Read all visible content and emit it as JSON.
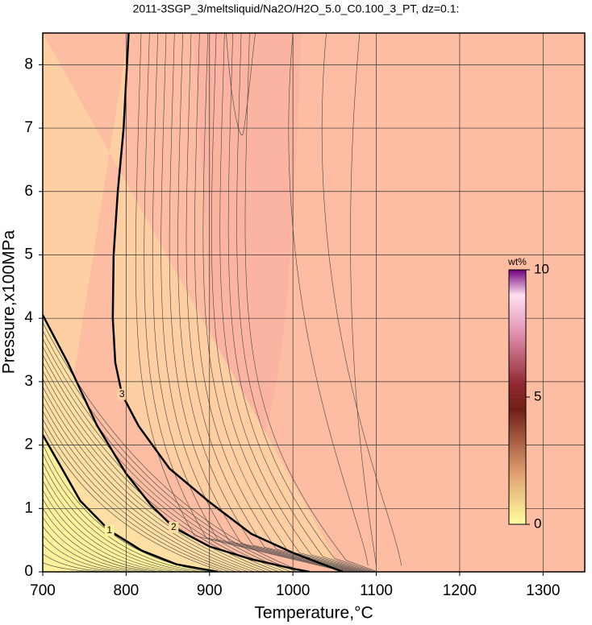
{
  "chart_data": {
    "type": "contour",
    "title": "2011-3SGP_3/meltsliquid/Na2O/H2O_5.0_C0.100_3_PT, dz=0.1:",
    "x_label": "Temperature,°C",
    "y_label": "Pressure,x100MPa",
    "xlim": [
      700,
      1350
    ],
    "ylim": [
      0,
      8.5
    ],
    "xticks": [
      700,
      800,
      900,
      1000,
      1100,
      1200,
      1300
    ],
    "yticks": [
      0,
      1,
      2,
      3,
      4,
      5,
      6,
      7,
      8
    ],
    "grid": true,
    "background": "#fdbda2",
    "contours": [
      {
        "level": 1,
        "color": "#fdf19c",
        "x": [
          700,
          720,
          745,
          780,
          818,
          860,
          910
        ],
        "y": [
          2.16,
          1.7,
          1.12,
          0.65,
          0.34,
          0.12,
          0
        ]
      },
      {
        "level": 2,
        "color": "#fddfa4",
        "x": [
          700,
          730,
          765,
          800,
          830,
          857,
          900,
          950,
          1000,
          1020
        ],
        "y": [
          4.05,
          3.3,
          2.31,
          1.55,
          1.05,
          0.7,
          0.4,
          0.2,
          0.05,
          0
        ]
      },
      {
        "level": 3,
        "color": "#fdcfa3",
        "x": [
          803,
          797,
          790,
          785,
          784,
          787,
          795,
          815,
          852,
          900,
          950,
          1000,
          1060
        ],
        "y": [
          8.5,
          7,
          6,
          5,
          4,
          3.3,
          2.8,
          2.3,
          1.63,
          1.1,
          0.6,
          0.3,
          0
        ]
      }
    ],
    "colorbar": {
      "label": "wt%",
      "lim": [
        0,
        10
      ],
      "ticks": [
        0,
        5,
        10
      ]
    }
  }
}
